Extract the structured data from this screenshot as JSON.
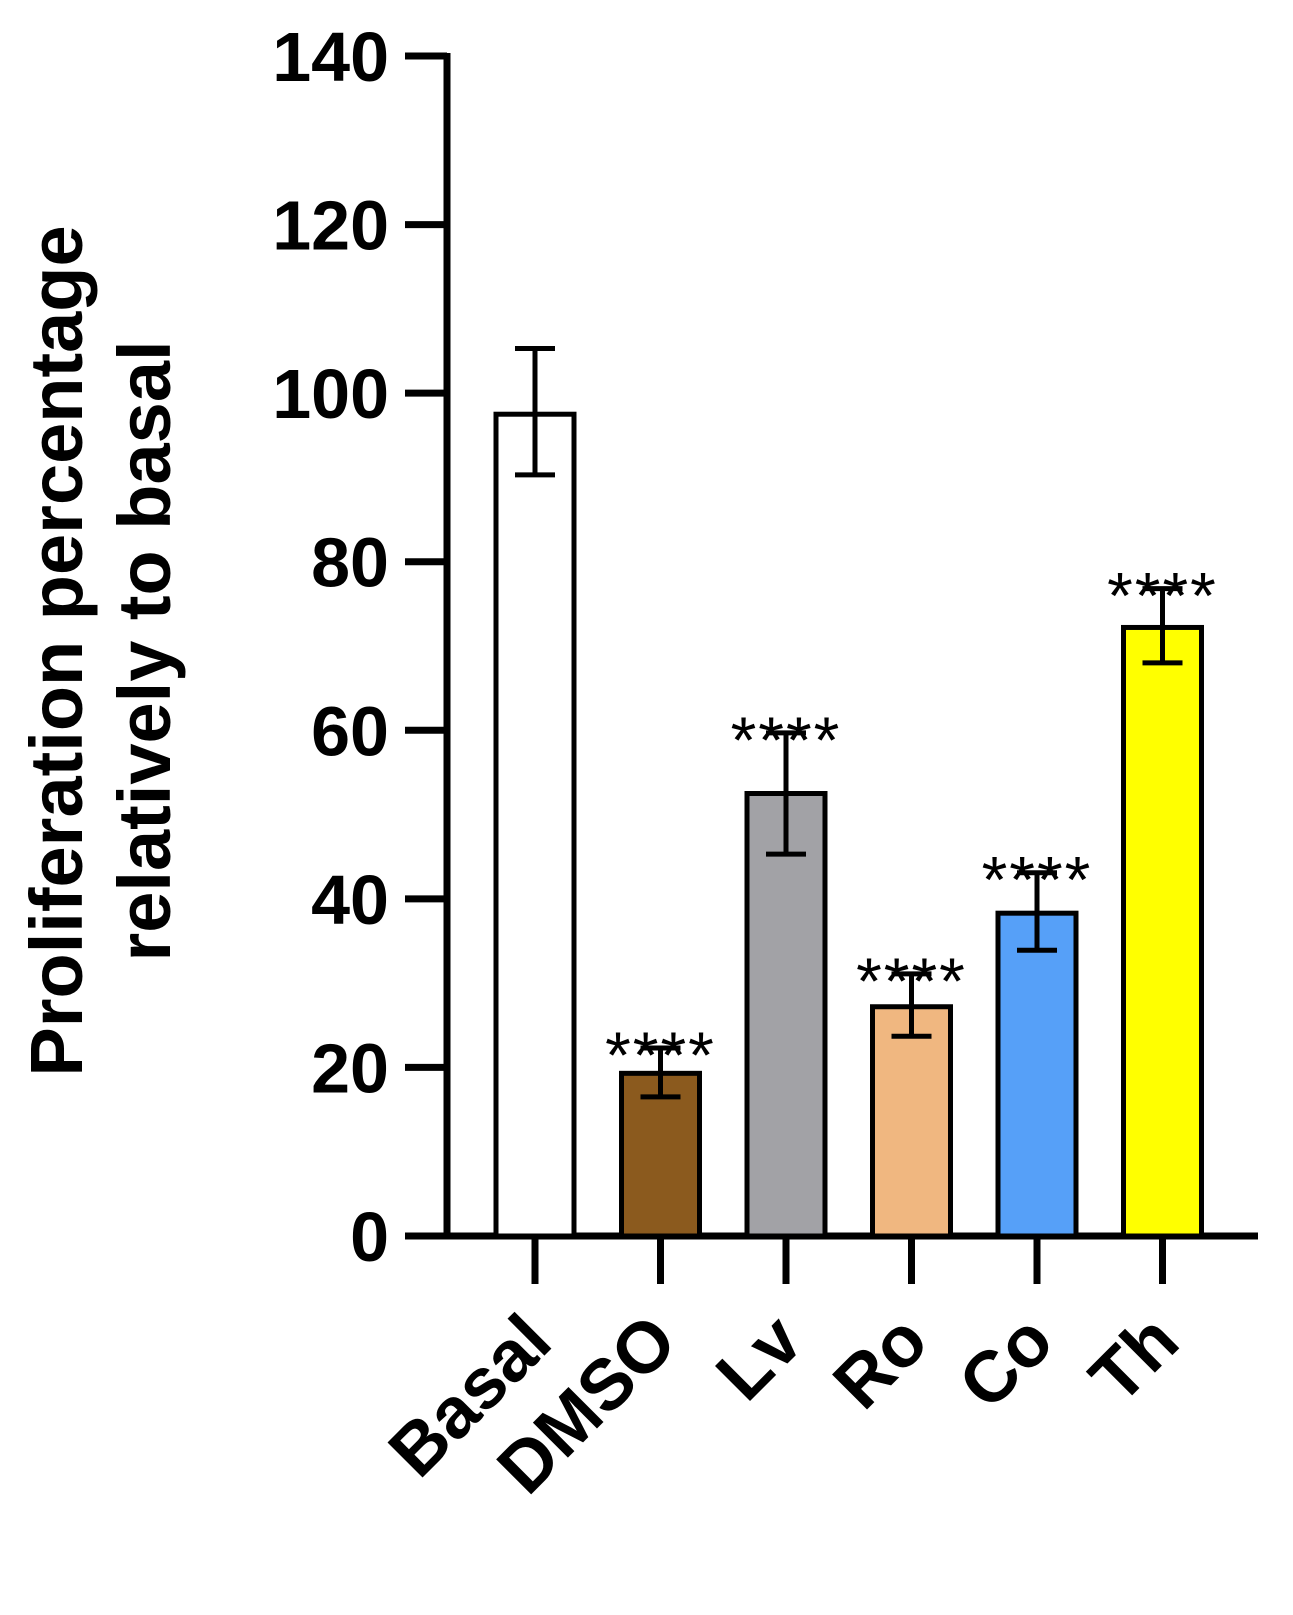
{
  "chart_data": {
    "type": "bar",
    "title": "",
    "xlabel": "",
    "ylabel_lines": [
      "Proliferation percentage",
      "relatively to basal"
    ],
    "ylim": [
      0,
      140
    ],
    "yticks": [
      0,
      20,
      40,
      60,
      80,
      100,
      120,
      140
    ],
    "grid": false,
    "categories": [
      "Basal",
      "DMSO",
      "Lv",
      "Ro",
      "Co",
      "Th"
    ],
    "values": [
      97.5,
      19.3,
      52.5,
      27.2,
      38.3,
      72.2
    ],
    "error_low": [
      90.3,
      16.5,
      45.3,
      23.7,
      33.9,
      68.0
    ],
    "error_high": [
      105.3,
      22.3,
      59.7,
      31.1,
      43.1,
      76.8
    ],
    "significance": [
      "",
      "****",
      "****",
      "****",
      "****",
      "****"
    ],
    "colors": [
      "#ffffff",
      "#8b5a1e",
      "#a2a2a6",
      "#f0b780",
      "#56a0f8",
      "#ffff00"
    ],
    "axis_color": "#000000"
  }
}
